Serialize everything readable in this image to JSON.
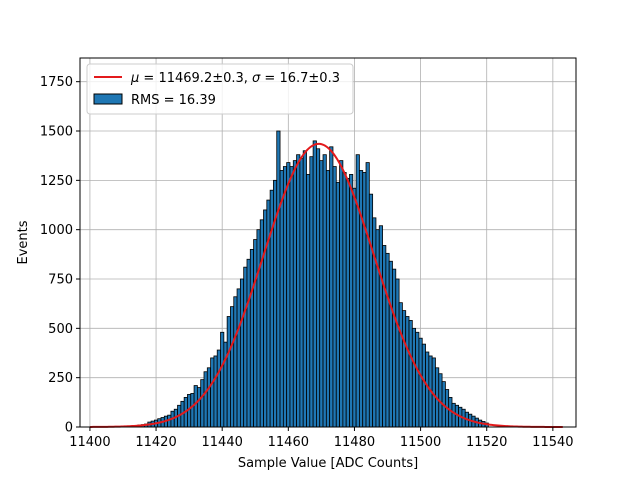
{
  "chart_data": {
    "type": "bar",
    "xlabel": "Sample Value [ADC Counts]",
    "ylabel": "Events",
    "xlim": [
      11397,
      11547
    ],
    "ylim": [
      0,
      1870
    ],
    "xticks": [
      11400,
      11420,
      11440,
      11460,
      11480,
      11500,
      11520,
      11540
    ],
    "yticks": [
      0,
      250,
      500,
      750,
      1000,
      1250,
      1500,
      1750
    ],
    "grid": true,
    "legend_position": "upper-left",
    "bin_width": 1,
    "series": [
      {
        "name": "RMS = 16.39",
        "type": "histogram",
        "color": "#1f77b4",
        "edgecolor": "#000000",
        "x": [
          11410,
          11411,
          11412,
          11413,
          11414,
          11415,
          11416,
          11417,
          11418,
          11419,
          11420,
          11421,
          11422,
          11423,
          11424,
          11425,
          11426,
          11427,
          11428,
          11429,
          11430,
          11431,
          11432,
          11433,
          11434,
          11435,
          11436,
          11437,
          11438,
          11439,
          11440,
          11441,
          11442,
          11443,
          11444,
          11445,
          11446,
          11447,
          11448,
          11449,
          11450,
          11451,
          11452,
          11453,
          11454,
          11455,
          11456,
          11457,
          11458,
          11459,
          11460,
          11461,
          11462,
          11463,
          11464,
          11465,
          11466,
          11467,
          11468,
          11469,
          11470,
          11471,
          11472,
          11473,
          11474,
          11475,
          11476,
          11477,
          11478,
          11479,
          11480,
          11481,
          11482,
          11483,
          11484,
          11485,
          11486,
          11487,
          11488,
          11489,
          11490,
          11491,
          11492,
          11493,
          11494,
          11495,
          11496,
          11497,
          11498,
          11499,
          11500,
          11501,
          11502,
          11503,
          11504,
          11505,
          11506,
          11507,
          11508,
          11509,
          11510,
          11511,
          11512,
          11513,
          11514,
          11515,
          11516,
          11517,
          11518,
          11519,
          11520
        ],
        "values": [
          2,
          3,
          4,
          6,
          8,
          10,
          12,
          15,
          25,
          30,
          35,
          42,
          48,
          55,
          60,
          80,
          90,
          110,
          130,
          150,
          165,
          170,
          210,
          200,
          240,
          280,
          300,
          350,
          360,
          390,
          480,
          430,
          560,
          610,
          660,
          700,
          750,
          810,
          850,
          900,
          950,
          1000,
          1050,
          1100,
          1150,
          1200,
          1250,
          1500,
          1300,
          1320,
          1340,
          1320,
          1350,
          1380,
          1360,
          1400,
          1280,
          1370,
          1450,
          1410,
          1350,
          1380,
          1300,
          1420,
          1320,
          1240,
          1350,
          1290,
          1260,
          1280,
          1210,
          1380,
          1300,
          1290,
          1340,
          1180,
          1060,
          1000,
          1020,
          920,
          880,
          840,
          800,
          750,
          630,
          590,
          560,
          540,
          500,
          480,
          450,
          420,
          380,
          360,
          350,
          300,
          270,
          230,
          190,
          150,
          120,
          110,
          100,
          90,
          75,
          65,
          55,
          45,
          35,
          28,
          20
        ]
      },
      {
        "name": "μ = 11469.2±0.3, σ = 16.7±0.3",
        "type": "line",
        "color": "#e31a1c",
        "model": "gaussian",
        "mu": 11469.2,
        "sigma": 16.7,
        "amplitude": 1435,
        "x_range": [
          11400,
          11543
        ]
      }
    ],
    "legend": {
      "fit_prefix_mu": "μ",
      "fit_eq": " = ",
      "fit_mu_value": "11469.2±0.3, ",
      "fit_prefix_sigma": "σ",
      "fit_sigma_value": "16.7±0.3",
      "hist_label": "RMS = 16.39"
    }
  }
}
